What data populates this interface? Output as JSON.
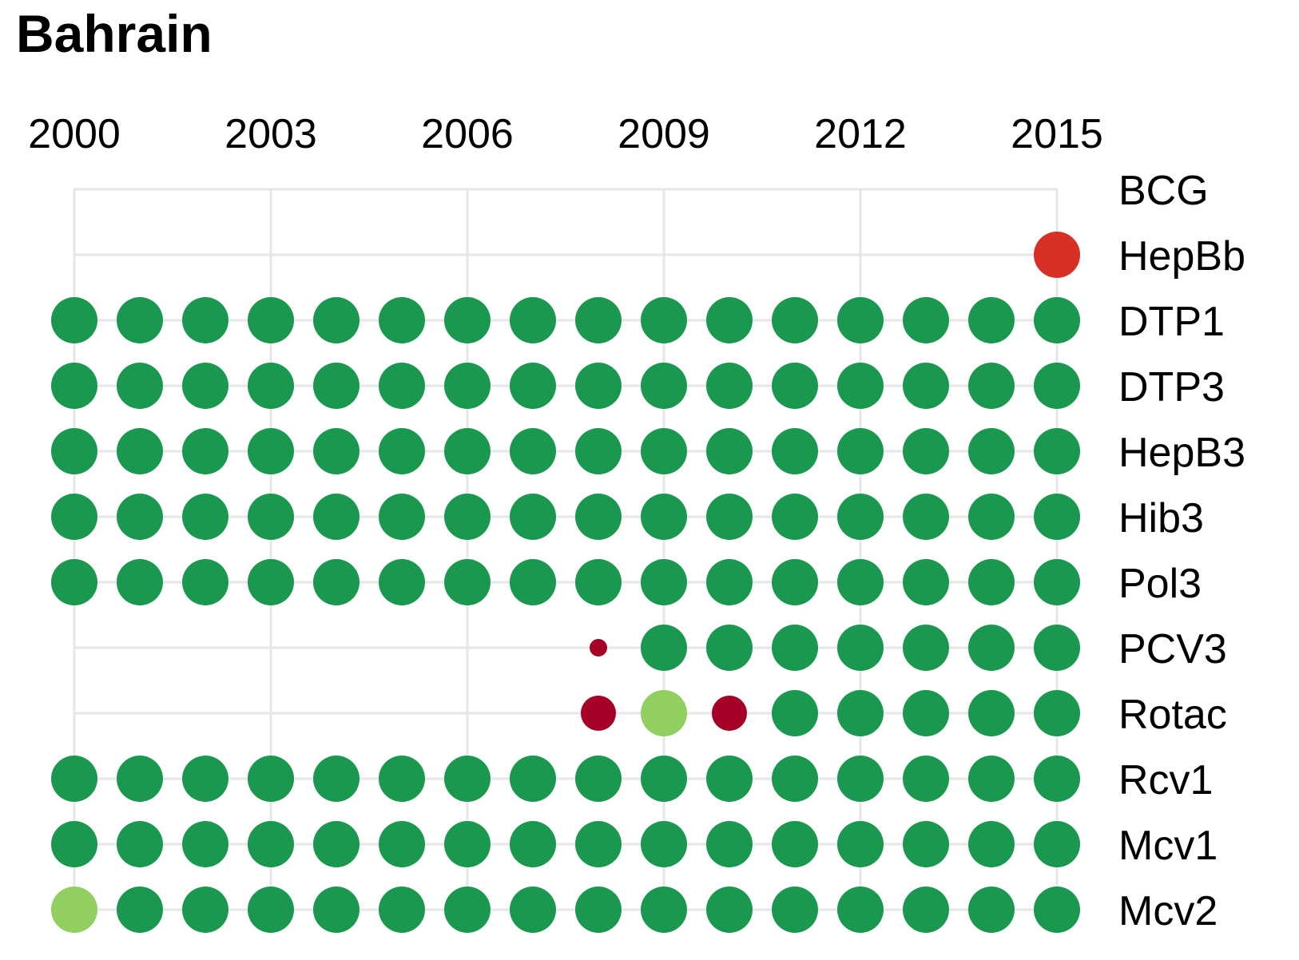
{
  "chart_data": {
    "type": "scatter",
    "title": "Bahrain",
    "x_ticks": [
      "2000",
      "2003",
      "2006",
      "2009",
      "2012",
      "2015"
    ],
    "years": [
      2000,
      2001,
      2002,
      2003,
      2004,
      2005,
      2006,
      2007,
      2008,
      2009,
      2010,
      2011,
      2012,
      2013,
      2014,
      2015
    ],
    "xlim": [
      2000,
      2015
    ],
    "grid": true,
    "categories": [
      "BCG",
      "HepBb",
      "DTP1",
      "DTP3",
      "HepB3",
      "Hib3",
      "Pol3",
      "PCV3",
      "Rotac",
      "Rcv1",
      "Mcv1",
      "Mcv2"
    ],
    "colors": {
      "dark_green": "#1a9850",
      "light_green": "#91cf60",
      "red": "#d73027",
      "dark_red": "#a50026",
      "grid": "#e6e6e6"
    },
    "series": [
      {
        "name": "BCG",
        "points": []
      },
      {
        "name": "HepBb",
        "points": [
          {
            "year": 2015,
            "color": "red",
            "size": "large"
          }
        ]
      },
      {
        "name": "DTP1",
        "fill_all": "dark_green"
      },
      {
        "name": "DTP3",
        "fill_all": "dark_green"
      },
      {
        "name": "HepB3",
        "fill_all": "dark_green"
      },
      {
        "name": "Hib3",
        "fill_all": "dark_green"
      },
      {
        "name": "Pol3",
        "fill_all": "dark_green"
      },
      {
        "name": "PCV3",
        "points": [
          {
            "year": 2008,
            "color": "dark_red",
            "size": "small"
          },
          {
            "year": 2009,
            "color": "dark_green",
            "size": "large"
          },
          {
            "year": 2010,
            "color": "dark_green",
            "size": "large"
          },
          {
            "year": 2011,
            "color": "dark_green",
            "size": "large"
          },
          {
            "year": 2012,
            "color": "dark_green",
            "size": "large"
          },
          {
            "year": 2013,
            "color": "dark_green",
            "size": "large"
          },
          {
            "year": 2014,
            "color": "dark_green",
            "size": "large"
          },
          {
            "year": 2015,
            "color": "dark_green",
            "size": "large"
          }
        ]
      },
      {
        "name": "Rotac",
        "points": [
          {
            "year": 2008,
            "color": "dark_red",
            "size": "medium"
          },
          {
            "year": 2009,
            "color": "light_green",
            "size": "large"
          },
          {
            "year": 2010,
            "color": "dark_red",
            "size": "medium"
          },
          {
            "year": 2011,
            "color": "dark_green",
            "size": "large"
          },
          {
            "year": 2012,
            "color": "dark_green",
            "size": "large"
          },
          {
            "year": 2013,
            "color": "dark_green",
            "size": "large"
          },
          {
            "year": 2014,
            "color": "dark_green",
            "size": "large"
          },
          {
            "year": 2015,
            "color": "dark_green",
            "size": "large"
          }
        ]
      },
      {
        "name": "Rcv1",
        "fill_all": "dark_green"
      },
      {
        "name": "Mcv1",
        "fill_all": "dark_green"
      },
      {
        "name": "Mcv2",
        "points": [
          {
            "year": 2000,
            "color": "light_green",
            "size": "large"
          },
          {
            "year": 2001,
            "color": "dark_green",
            "size": "large"
          },
          {
            "year": 2002,
            "color": "dark_green",
            "size": "large"
          },
          {
            "year": 2003,
            "color": "dark_green",
            "size": "large"
          },
          {
            "year": 2004,
            "color": "dark_green",
            "size": "large"
          },
          {
            "year": 2005,
            "color": "dark_green",
            "size": "large"
          },
          {
            "year": 2006,
            "color": "dark_green",
            "size": "large"
          },
          {
            "year": 2007,
            "color": "dark_green",
            "size": "large"
          },
          {
            "year": 2008,
            "color": "dark_green",
            "size": "large"
          },
          {
            "year": 2009,
            "color": "dark_green",
            "size": "large"
          },
          {
            "year": 2010,
            "color": "dark_green",
            "size": "large"
          },
          {
            "year": 2011,
            "color": "dark_green",
            "size": "large"
          },
          {
            "year": 2012,
            "color": "dark_green",
            "size": "large"
          },
          {
            "year": 2013,
            "color": "dark_green",
            "size": "large"
          },
          {
            "year": 2014,
            "color": "dark_green",
            "size": "large"
          },
          {
            "year": 2015,
            "color": "dark_green",
            "size": "large"
          }
        ]
      }
    ]
  }
}
